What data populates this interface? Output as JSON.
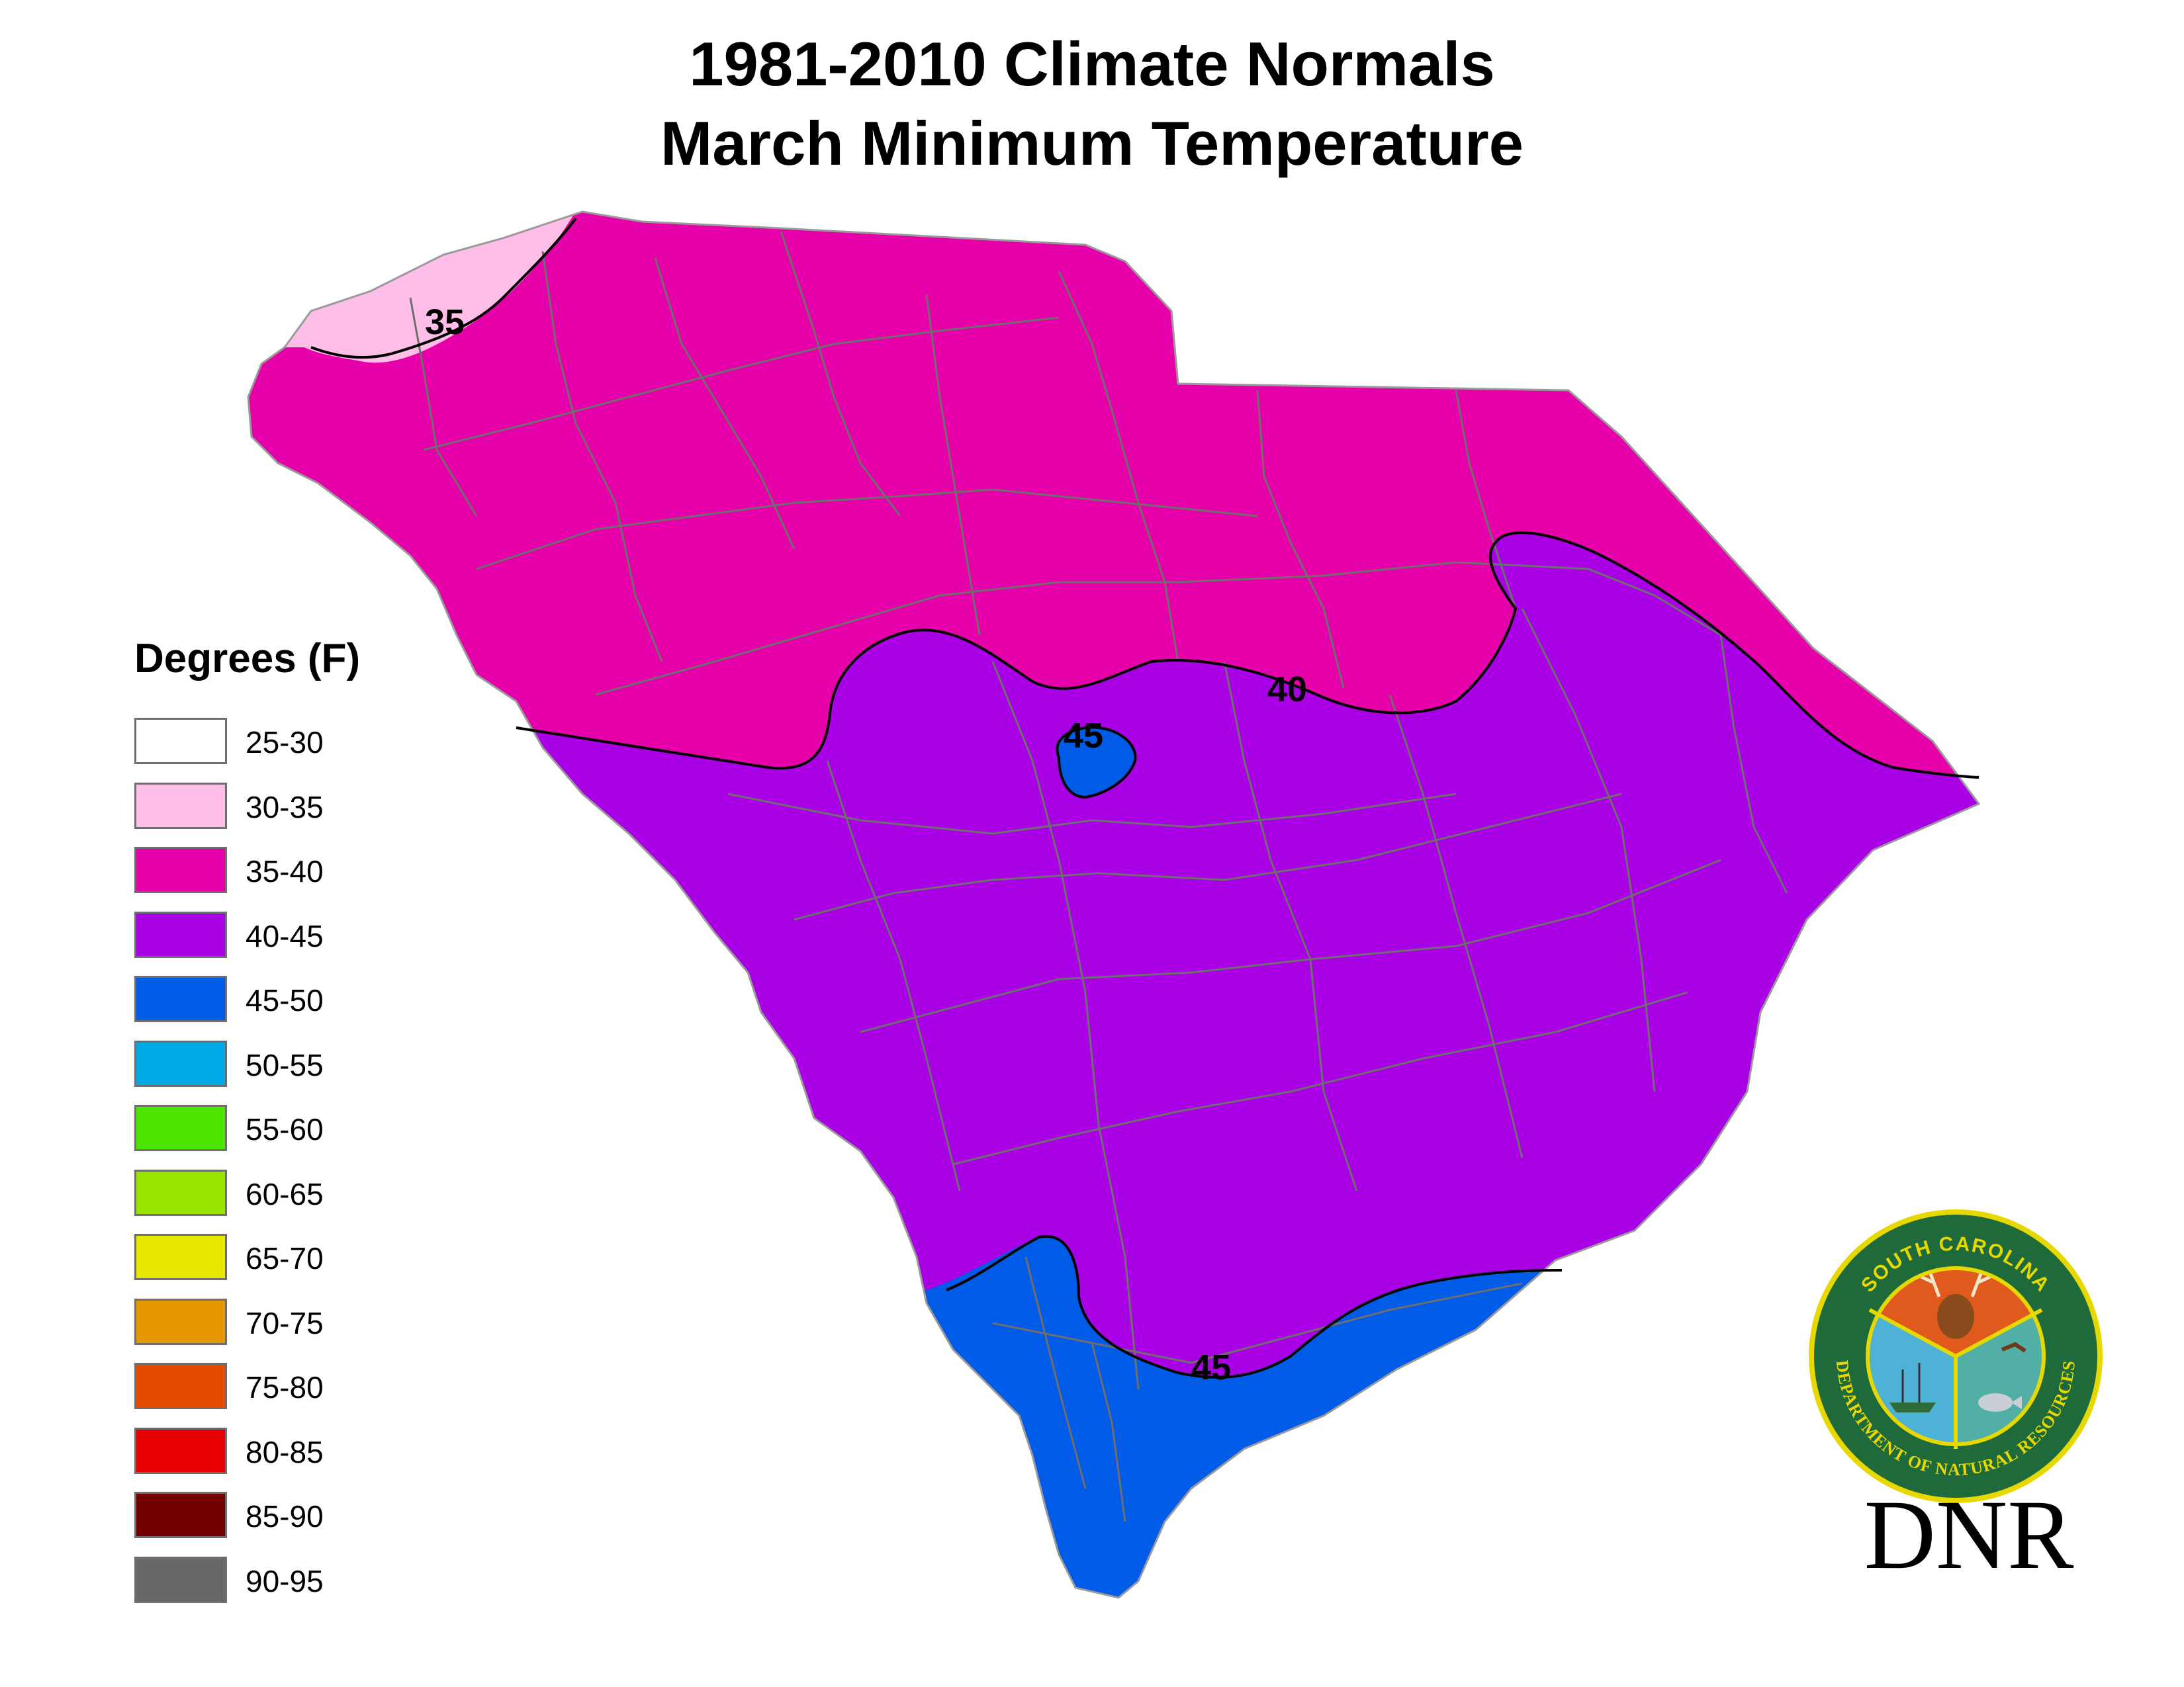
{
  "title": {
    "line1": "1981-2010 Climate Normals",
    "line2": "March Minimum Temperature"
  },
  "legend": {
    "heading": "Degrees (F)",
    "items": [
      {
        "label": "25-30",
        "color": "#ffffff"
      },
      {
        "label": "30-35",
        "color": "#ffbee8"
      },
      {
        "label": "35-40",
        "color": "#e600a9"
      },
      {
        "label": "40-45",
        "color": "#a900e6"
      },
      {
        "label": "45-50",
        "color": "#005ce6"
      },
      {
        "label": "50-55",
        "color": "#00a9e6"
      },
      {
        "label": "55-60",
        "color": "#4ce600"
      },
      {
        "label": "60-65",
        "color": "#98e600"
      },
      {
        "label": "65-70",
        "color": "#e6e600"
      },
      {
        "label": "70-75",
        "color": "#e69800"
      },
      {
        "label": "75-80",
        "color": "#e64c00"
      },
      {
        "label": "80-85",
        "color": "#e60000"
      },
      {
        "label": "85-90",
        "color": "#730000"
      },
      {
        "label": "90-95",
        "color": "#686868"
      }
    ]
  },
  "map": {
    "region": "South Carolina",
    "zones": [
      {
        "range": "30-35",
        "color": "#ffbee8"
      },
      {
        "range": "35-40",
        "color": "#e600a9"
      },
      {
        "range": "40-45",
        "color": "#a900e6"
      },
      {
        "range": "45-50",
        "color": "#005ce6"
      }
    ],
    "isotherm_labels": [
      "35",
      "40",
      "45",
      "45"
    ]
  },
  "logo": {
    "ring_text_top": "SOUTH CAROLINA",
    "ring_text_bottom": "DEPARTMENT OF NATURAL RESOURCES",
    "wordmark": "DNR"
  }
}
